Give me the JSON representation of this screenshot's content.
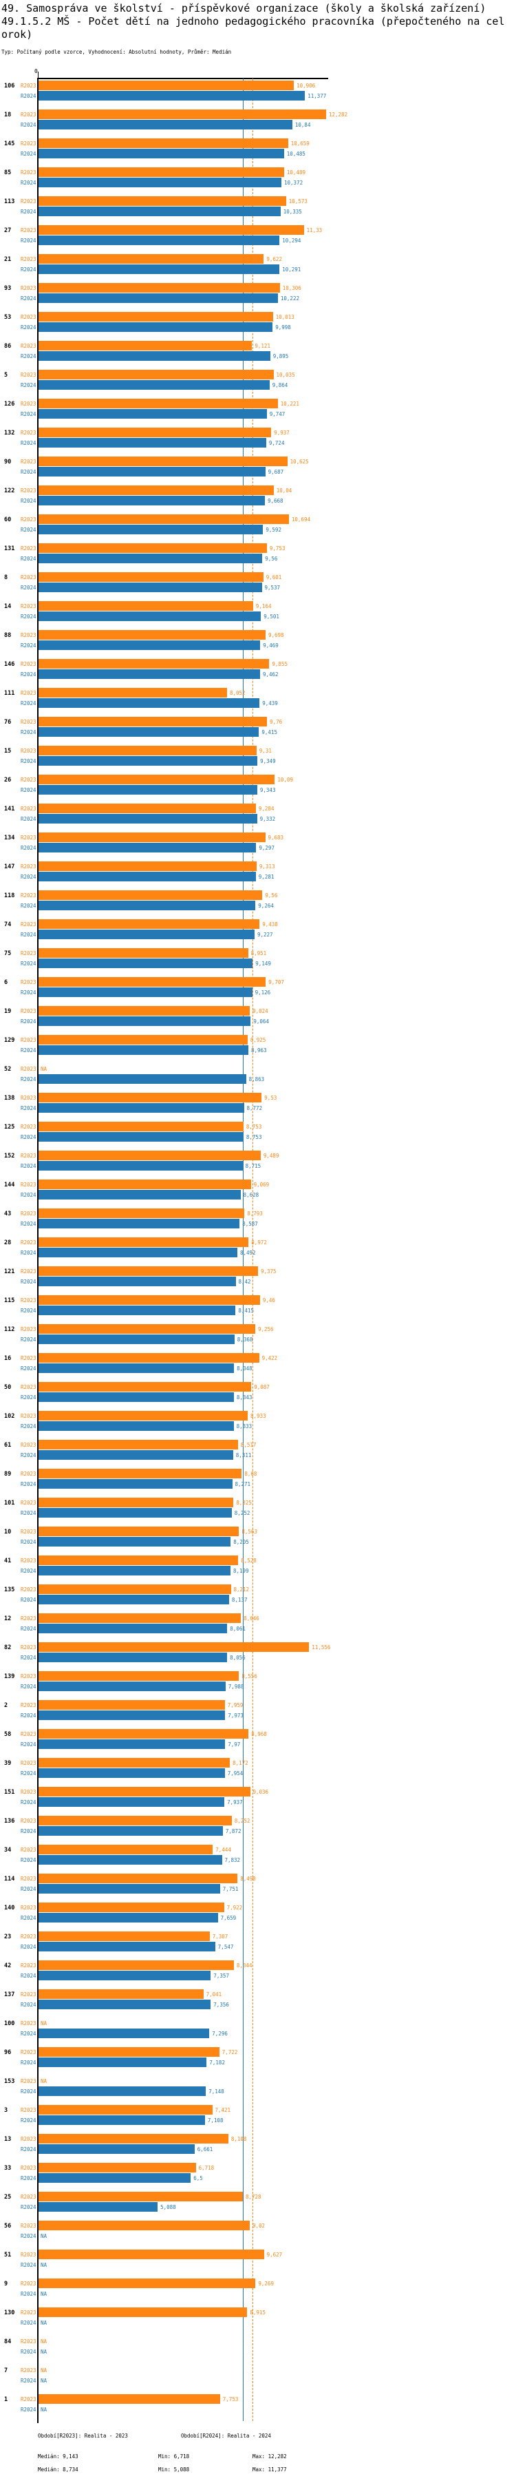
{
  "title_lines": [
    "49. Samospráva ve školství - příspěvkové organizace (školy a školská zařízení)",
    "49.1.5.2 MŠ - Počet dětí na jednoho pedagogického pracovníka (přepočteného na cel",
    "orok)"
  ],
  "subtitle": "Typ: Počítaný podle vzorce, Vyhodnocení: Absolutní hodnoty, Průměr: Medián",
  "axis": {
    "zero_label": "0",
    "max_units": 12.37
  },
  "colors": {
    "r2023": "#ff8512",
    "r2024": "#2478b4",
    "axis": "#000000"
  },
  "na_label": "NA",
  "chart_data": {
    "type": "bar",
    "orientation": "horizontal",
    "title": "49. Samospráva ve školství - příspěvkové organizace (školy a školská zařízení) 49.1.5.2 MŠ - Počet dětí na jednoho pedagogického pracovníka (přepočteného na celorok)",
    "subtitle": "Typ: Počítaný podle vzorce, Vyhodnocení: Absolutní hodnoty, Průměr: Medián",
    "xlim": [
      0,
      12.37
    ],
    "grid": false,
    "na_label": "NA",
    "categories": [
      "106",
      "18",
      "145",
      "85",
      "113",
      "27",
      "21",
      "93",
      "53",
      "86",
      "5",
      "126",
      "132",
      "90",
      "122",
      "60",
      "131",
      "8",
      "14",
      "88",
      "146",
      "111",
      "76",
      "15",
      "26",
      "141",
      "134",
      "147",
      "118",
      "74",
      "75",
      "6",
      "19",
      "129",
      "52",
      "138",
      "125",
      "152",
      "144",
      "43",
      "28",
      "121",
      "115",
      "112",
      "16",
      "50",
      "102",
      "61",
      "89",
      "101",
      "10",
      "41",
      "135",
      "12",
      "82",
      "139",
      "2",
      "58",
      "39",
      "151",
      "136",
      "34",
      "114",
      "140",
      "23",
      "42",
      "137",
      "100",
      "96",
      "153",
      "3",
      "13",
      "33",
      "25",
      "56",
      "51",
      "9",
      "130",
      "84",
      "7",
      "1"
    ],
    "series": [
      {
        "name": "R2023",
        "color": "#ff8512",
        "median": 9.143,
        "values": [
          10.906,
          12.282,
          10.659,
          10.489,
          10.573,
          11.33,
          9.622,
          10.306,
          10.013,
          9.121,
          10.035,
          10.221,
          9.937,
          10.625,
          10.04,
          10.694,
          9.753,
          9.601,
          9.164,
          9.698,
          9.855,
          8.052,
          9.76,
          9.31,
          10.09,
          9.284,
          9.683,
          9.313,
          9.56,
          9.438,
          8.951,
          9.707,
          9.024,
          8.925,
          null,
          9.53,
          8.753,
          9.489,
          9.069,
          8.793,
          8.972,
          9.375,
          9.46,
          9.256,
          9.422,
          9.087,
          8.933,
          8.517,
          8.68,
          8.325,
          8.563,
          8.528,
          8.212,
          8.646,
          11.556,
          8.556,
          7.959,
          8.968,
          8.172,
          9.036,
          8.252,
          7.444,
          8.498,
          7.922,
          7.307,
          8.344,
          7.041,
          null,
          7.722,
          null,
          7.421,
          8.108,
          6.718,
          8.728,
          9.02,
          9.627,
          9.269,
          8.915,
          null,
          null,
          7.753
        ]
      },
      {
        "name": "R2024",
        "color": "#2478b4",
        "median": 8.734,
        "values": [
          11.377,
          10.84,
          10.485,
          10.372,
          10.335,
          10.294,
          10.291,
          10.222,
          9.998,
          9.895,
          9.864,
          9.747,
          9.724,
          9.687,
          9.668,
          9.592,
          9.56,
          9.537,
          9.501,
          9.469,
          9.462,
          9.439,
          9.415,
          9.349,
          9.343,
          9.332,
          9.297,
          9.281,
          9.264,
          9.227,
          9.149,
          9.126,
          9.064,
          8.963,
          8.863,
          8.772,
          8.753,
          8.715,
          8.628,
          8.587,
          8.492,
          8.42,
          8.415,
          8.368,
          8.348,
          8.343,
          8.333,
          8.311,
          8.271,
          8.252,
          8.205,
          8.199,
          8.137,
          8.061,
          8.056,
          7.988,
          7.973,
          7.97,
          7.954,
          7.937,
          7.872,
          7.832,
          7.751,
          7.659,
          7.547,
          7.357,
          7.356,
          7.296,
          7.182,
          7.148,
          7.108,
          6.661,
          6.5,
          5.088,
          null,
          null,
          null,
          null,
          null,
          null,
          null
        ]
      }
    ]
  },
  "legend": {
    "r2023": "Období[R2023]: Realita - 2023",
    "r2024": "Období[R2024]: Realita - 2024"
  },
  "stats": {
    "r2023": {
      "median": "Medián: 9,143",
      "min": "Min: 6,718",
      "max": "Max: 12,282"
    },
    "r2024": {
      "median": "Medián: 8,734",
      "min": "Min: 5,088",
      "max": "Max: 11,377"
    }
  }
}
